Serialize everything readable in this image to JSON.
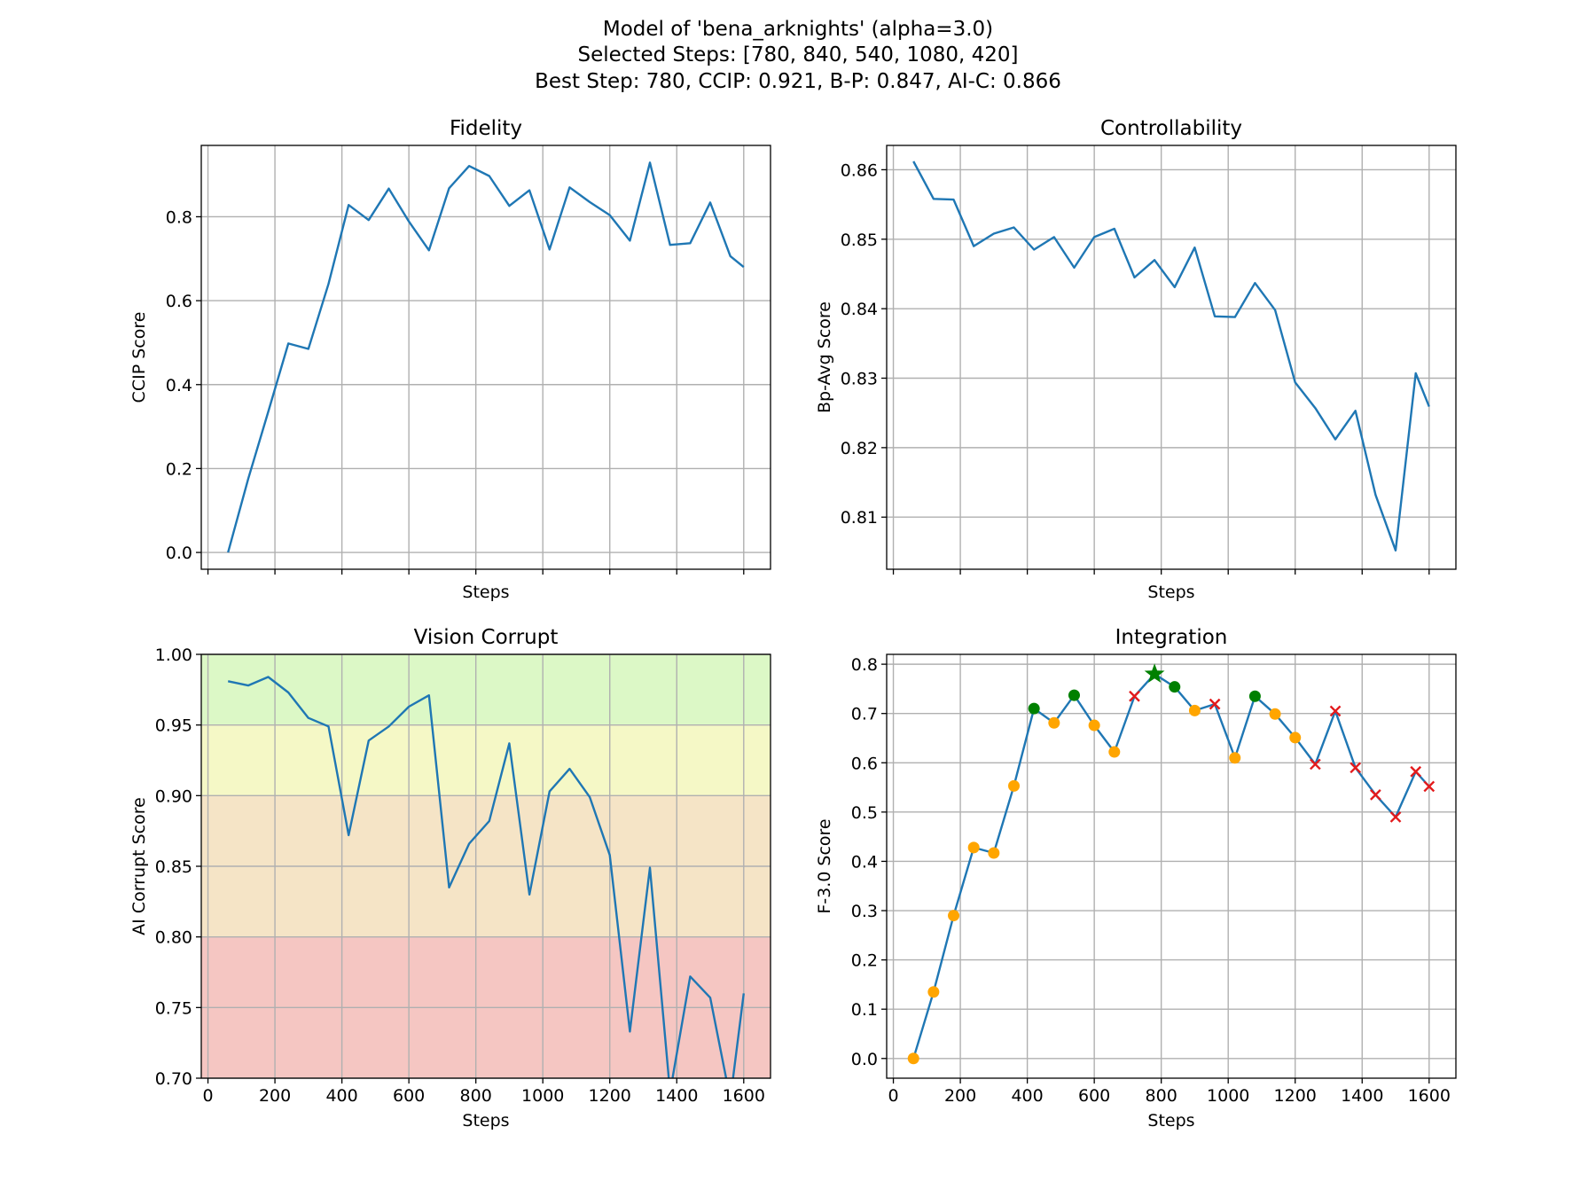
{
  "figure": {
    "title_lines": [
      "Model of 'bena_arknights' (alpha=3.0)",
      "Selected Steps: [780, 840, 540, 1080, 420]",
      "Best Step: 780, CCIP: 0.921, B-P: 0.847, AI-C: 0.866"
    ]
  },
  "chart_data": [
    {
      "id": "fidelity",
      "type": "line",
      "title": "Fidelity",
      "xlabel": "Steps",
      "ylabel": "CCIP Score",
      "xlim": [
        -20,
        1680
      ],
      "ylim": [
        -0.04,
        0.97
      ],
      "xticks": [
        0,
        200,
        400,
        600,
        800,
        1000,
        1200,
        1400,
        1600
      ],
      "xtick_labels_visible": false,
      "yticks": [
        0.0,
        0.2,
        0.4,
        0.6,
        0.8
      ],
      "ytick_labels": [
        "0.0",
        "0.2",
        "0.4",
        "0.6",
        "0.8"
      ],
      "grid": true,
      "line_color": "#1f77b4",
      "x": [
        60,
        120,
        180,
        240,
        300,
        360,
        420,
        480,
        540,
        600,
        660,
        720,
        780,
        840,
        900,
        960,
        1020,
        1080,
        1140,
        1200,
        1260,
        1320,
        1380,
        1440,
        1500,
        1560,
        1600
      ],
      "y": [
        0.0,
        0.175,
        0.335,
        0.498,
        0.485,
        0.64,
        0.828,
        0.792,
        0.867,
        0.789,
        0.72,
        0.868,
        0.921,
        0.897,
        0.826,
        0.863,
        0.722,
        0.87,
        0.835,
        0.804,
        0.743,
        0.929,
        0.733,
        0.737,
        0.834,
        0.706,
        0.68
      ]
    },
    {
      "id": "controllability",
      "type": "line",
      "title": "Controllability",
      "xlabel": "Steps",
      "ylabel": "Bp-Avg Score",
      "xlim": [
        -20,
        1680
      ],
      "ylim": [
        0.8025,
        0.8635
      ],
      "xticks": [
        0,
        200,
        400,
        600,
        800,
        1000,
        1200,
        1400,
        1600
      ],
      "xtick_labels_visible": false,
      "yticks": [
        0.81,
        0.82,
        0.83,
        0.84,
        0.85,
        0.86
      ],
      "ytick_labels": [
        "0.81",
        "0.82",
        "0.83",
        "0.84",
        "0.85",
        "0.86"
      ],
      "grid": true,
      "line_color": "#1f77b4",
      "x": [
        60,
        120,
        180,
        240,
        300,
        360,
        420,
        480,
        540,
        600,
        660,
        720,
        780,
        840,
        900,
        960,
        1020,
        1080,
        1140,
        1200,
        1260,
        1320,
        1380,
        1440,
        1500,
        1560,
        1600
      ],
      "y": [
        0.8612,
        0.8558,
        0.8557,
        0.849,
        0.8508,
        0.8517,
        0.8485,
        0.8503,
        0.8459,
        0.8503,
        0.8515,
        0.8445,
        0.847,
        0.8431,
        0.8488,
        0.8389,
        0.8388,
        0.8437,
        0.8398,
        0.8294,
        0.8257,
        0.8212,
        0.8253,
        0.8132,
        0.8052,
        0.8307,
        0.8259
      ]
    },
    {
      "id": "vision-corrupt",
      "type": "line",
      "title": "Vision Corrupt",
      "xlabel": "Steps",
      "ylabel": "AI Corrupt Score",
      "xlim": [
        -20,
        1680
      ],
      "ylim": [
        0.7,
        1.0
      ],
      "xticks": [
        0,
        200,
        400,
        600,
        800,
        1000,
        1200,
        1400,
        1600
      ],
      "xtick_labels": [
        "0",
        "200",
        "400",
        "600",
        "800",
        "1000",
        "1200",
        "1400",
        "1600"
      ],
      "xtick_labels_visible": true,
      "yticks": [
        0.7,
        0.75,
        0.8,
        0.85,
        0.9,
        0.95,
        1.0
      ],
      "ytick_labels": [
        "0.70",
        "0.75",
        "0.80",
        "0.85",
        "0.90",
        "0.95",
        "1.00"
      ],
      "grid": true,
      "line_color": "#1f77b4",
      "bands": [
        {
          "from": 0.95,
          "to": 1.0,
          "color": "#dcf8c6"
        },
        {
          "from": 0.9,
          "to": 0.95,
          "color": "#f5f8c6"
        },
        {
          "from": 0.8,
          "to": 0.9,
          "color": "#f5e4c6"
        },
        {
          "from": 0.7,
          "to": 0.8,
          "color": "#f5c6c2"
        }
      ],
      "x": [
        60,
        120,
        180,
        240,
        300,
        360,
        420,
        480,
        540,
        600,
        660,
        720,
        780,
        840,
        900,
        960,
        1020,
        1080,
        1140,
        1200,
        1260,
        1320,
        1380,
        1440,
        1500,
        1560,
        1600
      ],
      "y": [
        0.981,
        0.978,
        0.984,
        0.973,
        0.955,
        0.949,
        0.872,
        0.939,
        0.949,
        0.963,
        0.971,
        0.835,
        0.866,
        0.882,
        0.937,
        0.83,
        0.903,
        0.919,
        0.899,
        0.858,
        0.733,
        0.849,
        0.69,
        0.772,
        0.757,
        0.685,
        0.76
      ]
    },
    {
      "id": "integration",
      "type": "line",
      "title": "Integration",
      "xlabel": "Steps",
      "ylabel": "F-3.0 Score",
      "xlim": [
        -20,
        1680
      ],
      "ylim": [
        -0.04,
        0.82
      ],
      "xticks": [
        0,
        200,
        400,
        600,
        800,
        1000,
        1200,
        1400,
        1600
      ],
      "xtick_labels": [
        "0",
        "200",
        "400",
        "600",
        "800",
        "1000",
        "1200",
        "1400",
        "1600"
      ],
      "xtick_labels_visible": true,
      "yticks": [
        0.0,
        0.1,
        0.2,
        0.3,
        0.4,
        0.5,
        0.6,
        0.7,
        0.8
      ],
      "ytick_labels": [
        "0.0",
        "0.1",
        "0.2",
        "0.3",
        "0.4",
        "0.5",
        "0.6",
        "0.7",
        "0.8"
      ],
      "grid": true,
      "line_color": "#1f77b4",
      "marker_colors": {
        "normal": "#ffa500",
        "selected": "#008000",
        "best": "#008000",
        "rejected": "#e31a1c"
      },
      "x": [
        60,
        120,
        180,
        240,
        300,
        360,
        420,
        480,
        540,
        600,
        660,
        720,
        780,
        840,
        900,
        960,
        1020,
        1080,
        1140,
        1200,
        1260,
        1320,
        1380,
        1440,
        1500,
        1560,
        1600
      ],
      "y": [
        0.0,
        0.135,
        0.29,
        0.428,
        0.417,
        0.553,
        0.71,
        0.681,
        0.737,
        0.676,
        0.622,
        0.735,
        0.78,
        0.754,
        0.706,
        0.719,
        0.61,
        0.735,
        0.699,
        0.651,
        0.597,
        0.705,
        0.59,
        0.535,
        0.49,
        0.582,
        0.552
      ],
      "markers": [
        "normal",
        "normal",
        "normal",
        "normal",
        "normal",
        "normal",
        "selected",
        "normal",
        "selected",
        "normal",
        "normal",
        "rejected",
        "best",
        "selected",
        "normal",
        "rejected",
        "normal",
        "selected",
        "normal",
        "normal",
        "rejected",
        "rejected",
        "rejected",
        "rejected",
        "rejected",
        "rejected",
        "rejected"
      ]
    }
  ]
}
